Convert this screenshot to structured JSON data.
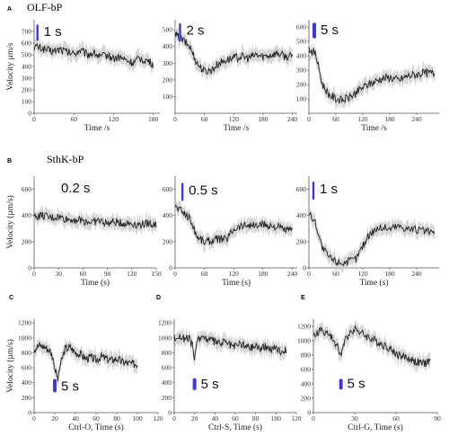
{
  "figure": {
    "rows": [
      {
        "letter": "A",
        "title": "OLF-bP"
      },
      {
        "letter": "B",
        "title": "SthK-bP"
      },
      {
        "letter": "",
        "title": ""
      }
    ]
  },
  "colors": {
    "trace": "#222222",
    "band": "#c8c8c8",
    "stim": "#3a3adf",
    "axis": "#555555"
  },
  "chart_data": [
    {
      "type": "line",
      "panel": "A1",
      "ylabel": "Velocity µm/s",
      "xlabel": "Time /s",
      "stim_label": "1 s",
      "xlim": [
        0,
        190
      ],
      "ylim": [
        0,
        800
      ],
      "xticks": [
        0,
        60,
        120,
        180
      ],
      "yticks": [
        0,
        100,
        200,
        300,
        400,
        500,
        600,
        700
      ],
      "stim": {
        "x": 5,
        "y_from": 620,
        "y_to": 760
      },
      "x": [
        0,
        10,
        20,
        30,
        40,
        50,
        60,
        70,
        80,
        90,
        100,
        110,
        120,
        130,
        140,
        150,
        160,
        170,
        180
      ],
      "y": [
        570,
        560,
        540,
        530,
        550,
        520,
        510,
        540,
        500,
        520,
        480,
        500,
        470,
        480,
        450,
        430,
        470,
        450,
        420
      ]
    },
    {
      "type": "line",
      "panel": "A2",
      "ylabel": "",
      "xlabel": "Time /s",
      "stim_label": "2 s",
      "xlim": [
        0,
        250
      ],
      "ylim": [
        0,
        560
      ],
      "xticks": [
        0,
        60,
        120,
        180,
        240
      ],
      "yticks": [
        100,
        200,
        300,
        400,
        500
      ],
      "stim": {
        "x": 10,
        "y_from": 430,
        "y_to": 540
      },
      "x": [
        0,
        15,
        30,
        45,
        60,
        75,
        90,
        105,
        120,
        135,
        150,
        165,
        180,
        195,
        210,
        225,
        240
      ],
      "y": [
        470,
        440,
        400,
        300,
        250,
        260,
        300,
        320,
        330,
        340,
        330,
        350,
        340,
        350,
        360,
        340,
        340
      ]
    },
    {
      "type": "line",
      "panel": "A3",
      "ylabel": "",
      "xlabel": "Time /s",
      "stim_label": "5 s",
      "xlim": [
        0,
        290
      ],
      "ylim": [
        0,
        650
      ],
      "xticks": [
        0,
        60,
        120,
        180,
        240
      ],
      "yticks": [
        100,
        200,
        300,
        400,
        500,
        600
      ],
      "stim": {
        "x": 12,
        "y_from": 520,
        "y_to": 630
      },
      "x": [
        0,
        15,
        30,
        45,
        60,
        75,
        90,
        105,
        120,
        140,
        160,
        180,
        200,
        220,
        240,
        260,
        280
      ],
      "y": [
        450,
        410,
        200,
        130,
        100,
        90,
        110,
        140,
        180,
        210,
        240,
        250,
        230,
        260,
        270,
        280,
        280
      ]
    },
    {
      "type": "line",
      "panel": "B1",
      "ylabel": "Velocity (µm/s)",
      "xlabel": "Time (s)",
      "stim_label": "0.2 s",
      "xlim": [
        0,
        150
      ],
      "ylim": [
        0,
        700
      ],
      "xticks": [
        0,
        30,
        60,
        90,
        120,
        150
      ],
      "yticks": [
        0,
        200,
        400,
        600
      ],
      "stim": {
        "x": 0,
        "y_from": 0,
        "y_to": 0
      },
      "x": [
        0,
        10,
        20,
        30,
        40,
        50,
        60,
        70,
        80,
        90,
        100,
        110,
        120,
        130,
        140,
        150
      ],
      "y": [
        390,
        400,
        380,
        390,
        370,
        370,
        360,
        350,
        360,
        340,
        350,
        340,
        340,
        330,
        340,
        330
      ]
    },
    {
      "type": "line",
      "panel": "B2",
      "ylabel": "",
      "xlabel": "Time (s)",
      "stim_label": "0.5 s",
      "xlim": [
        0,
        250
      ],
      "ylim": [
        0,
        700
      ],
      "xticks": [
        0,
        60,
        120,
        180,
        240
      ],
      "yticks": [
        0,
        200,
        400,
        600
      ],
      "stim": {
        "x": 15,
        "y_from": 510,
        "y_to": 650
      },
      "x": [
        0,
        15,
        30,
        45,
        60,
        75,
        90,
        105,
        120,
        135,
        150,
        165,
        180,
        195,
        210,
        225,
        240
      ],
      "y": [
        470,
        430,
        380,
        240,
        200,
        210,
        220,
        220,
        300,
        320,
        330,
        320,
        330,
        320,
        310,
        290,
        280
      ]
    },
    {
      "type": "line",
      "panel": "B3",
      "ylabel": "",
      "xlabel": "Time (s)",
      "stim_label": "1 s",
      "xlim": [
        0,
        290
      ],
      "ylim": [
        0,
        700
      ],
      "xticks": [
        0,
        60,
        120,
        180,
        240
      ],
      "yticks": [
        0,
        200,
        400,
        600
      ],
      "stim": {
        "x": 10,
        "y_from": 520,
        "y_to": 660
      },
      "x": [
        0,
        15,
        30,
        45,
        60,
        75,
        90,
        105,
        120,
        135,
        150,
        165,
        180,
        195,
        210,
        225,
        240,
        260,
        280
      ],
      "y": [
        420,
        340,
        150,
        80,
        50,
        40,
        50,
        70,
        170,
        260,
        300,
        310,
        300,
        320,
        310,
        300,
        290,
        280,
        270
      ]
    },
    {
      "type": "line",
      "panel": "C",
      "letter": "C",
      "ylabel": "Velocity (µm/s)",
      "xlabel": "Ctrl-O, Time (s)",
      "stim_label": "5 s",
      "xlim": [
        0,
        120
      ],
      "ylim": [
        0,
        1250
      ],
      "xticks": [
        0,
        20,
        40,
        60,
        80,
        100,
        120
      ],
      "yticks": [
        0,
        200,
        400,
        600,
        800,
        1000,
        1200
      ],
      "stim": {
        "x": 20,
        "y_from": 270,
        "y_to": 450
      },
      "x": [
        0,
        5,
        10,
        15,
        18,
        20,
        23,
        25,
        30,
        35,
        40,
        45,
        50,
        55,
        60,
        65,
        70,
        75,
        80,
        85,
        90,
        95,
        100
      ],
      "y": [
        850,
        900,
        880,
        830,
        750,
        600,
        430,
        620,
        850,
        870,
        800,
        780,
        720,
        740,
        700,
        750,
        720,
        700,
        720,
        680,
        660,
        650,
        650
      ]
    },
    {
      "type": "line",
      "panel": "D",
      "letter": "D",
      "ylabel": "",
      "xlabel": "Ctrl-S, Time (s)",
      "stim_label": "5 s",
      "xlim": [
        0,
        120
      ],
      "ylim": [
        0,
        1250
      ],
      "xticks": [
        0,
        20,
        40,
        60,
        80,
        100,
        120
      ],
      "yticks": [
        0,
        200,
        400,
        600,
        800,
        1000,
        1200
      ],
      "stim": {
        "x": 20,
        "y_from": 300,
        "y_to": 460
      },
      "x": [
        0,
        5,
        10,
        15,
        18,
        20,
        23,
        26,
        30,
        35,
        40,
        45,
        50,
        55,
        60,
        65,
        70,
        75,
        80,
        85,
        90,
        95,
        100,
        105,
        110
      ],
      "y": [
        1000,
        1020,
        990,
        980,
        900,
        700,
        980,
        1020,
        1000,
        970,
        950,
        920,
        950,
        900,
        880,
        930,
        890,
        870,
        900,
        860,
        880,
        850,
        870,
        820,
        850
      ]
    },
    {
      "type": "line",
      "panel": "E",
      "letter": "E",
      "ylabel": "",
      "xlabel": "Ctrl-G, Time (s)",
      "stim_label": "5 s",
      "xlim": [
        0,
        90
      ],
      "ylim": [
        0,
        1300
      ],
      "xticks": [
        0,
        30,
        60,
        90
      ],
      "yticks": [
        0,
        200,
        400,
        600,
        800,
        1000,
        1200
      ],
      "stim": {
        "x": 20,
        "y_from": 320,
        "y_to": 470
      },
      "x": [
        0,
        5,
        10,
        15,
        18,
        20,
        23,
        26,
        30,
        35,
        40,
        45,
        50,
        55,
        60,
        65,
        70,
        75,
        80,
        85
      ],
      "y": [
        1050,
        1150,
        1100,
        1000,
        900,
        800,
        1000,
        1100,
        1180,
        1100,
        1050,
        1000,
        950,
        900,
        820,
        780,
        750,
        700,
        680,
        720
      ]
    }
  ]
}
